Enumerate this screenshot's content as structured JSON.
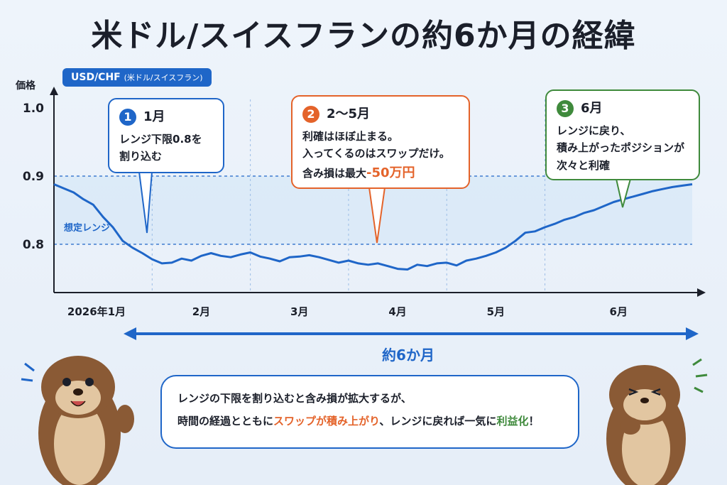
{
  "title": "米ドル/スイスフランの約6か月の経緯",
  "badge": {
    "pair": "USD/CHF",
    "pair_note": "(米ドル/スイスフラン)"
  },
  "colors": {
    "accent": "#1f66c8",
    "orange": "#e4632a",
    "green": "#3f8a3c",
    "line": "#1f66c8"
  },
  "callouts": [
    {
      "num": "1",
      "head": "1月",
      "lines": [
        "レンジ下限0.8を",
        "割り込む"
      ]
    },
    {
      "num": "2",
      "head": "2〜5月",
      "lines": [
        "利確はほぼ止まる。",
        "入ってくるのはスワップだけ。"
      ],
      "loss_prefix": "含み損は最大",
      "loss_value": "-50万円"
    },
    {
      "num": "3",
      "head": "6月",
      "lines": [
        "レンジに戻り、",
        "積み上がったポジションが",
        "次々と利確"
      ]
    }
  ],
  "span_label": "約6か月",
  "bubble": {
    "line1": "レンジの下限を割り込むと含み損が拡大するが、",
    "line2_a": "時間の経過とともに",
    "line2_b": "スワップが積み上がり",
    "line2_c": "、レンジに戻れば一気に",
    "line2_d": "利益化",
    "line2_e": "！"
  },
  "chart_data": {
    "type": "line",
    "ylabel": "価格",
    "yticks": [
      "1.0",
      "0.9",
      "0.8"
    ],
    "ylim": [
      0.73,
      1.0
    ],
    "months": [
      "2026年1月",
      "2月",
      "3月",
      "4月",
      "5月",
      "6月"
    ],
    "month_bounds": [
      0,
      1,
      2,
      3,
      4,
      5,
      6.5
    ],
    "range": {
      "label": "想定レンジ",
      "low": 0.8,
      "high": 0.9
    },
    "x": [
      0,
      0.1,
      0.2,
      0.3,
      0.4,
      0.5,
      0.6,
      0.7,
      0.8,
      0.9,
      1.0,
      1.1,
      1.2,
      1.3,
      1.4,
      1.5,
      1.6,
      1.7,
      1.8,
      1.9,
      2.0,
      2.1,
      2.2,
      2.3,
      2.4,
      2.5,
      2.6,
      2.7,
      2.8,
      2.9,
      3.0,
      3.1,
      3.2,
      3.3,
      3.4,
      3.5,
      3.6,
      3.7,
      3.8,
      3.9,
      4.0,
      4.1,
      4.2,
      4.3,
      4.4,
      4.5,
      4.6,
      4.7,
      4.8,
      4.9,
      5.0,
      5.1,
      5.2,
      5.3,
      5.4,
      5.5,
      5.6,
      5.7,
      5.8,
      5.9,
      6.0,
      6.1,
      6.2,
      6.3,
      6.4,
      6.5
    ],
    "values": [
      0.888,
      0.882,
      0.876,
      0.866,
      0.858,
      0.84,
      0.825,
      0.805,
      0.795,
      0.787,
      0.778,
      0.772,
      0.773,
      0.779,
      0.776,
      0.783,
      0.787,
      0.783,
      0.781,
      0.785,
      0.788,
      0.782,
      0.779,
      0.775,
      0.781,
      0.782,
      0.784,
      0.781,
      0.777,
      0.773,
      0.776,
      0.772,
      0.77,
      0.772,
      0.768,
      0.764,
      0.763,
      0.77,
      0.768,
      0.772,
      0.773,
      0.769,
      0.776,
      0.779,
      0.783,
      0.788,
      0.795,
      0.805,
      0.817,
      0.819,
      0.825,
      0.83,
      0.836,
      0.84,
      0.846,
      0.85,
      0.856,
      0.862,
      0.866,
      0.87,
      0.874,
      0.878,
      0.881,
      0.884,
      0.886,
      0.888
    ],
    "annotations": [
      "1",
      "2",
      "3"
    ]
  }
}
